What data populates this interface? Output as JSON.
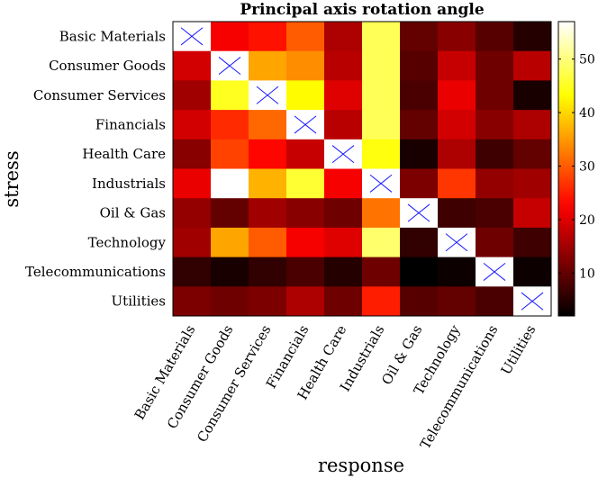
{
  "chart_data": {
    "type": "heatmap",
    "title": "Principal axis rotation angle",
    "xlabel": "response",
    "ylabel": "stress",
    "x_categories": [
      "Basic Materials",
      "Consumer Goods",
      "Consumer Services",
      "Financials",
      "Health Care",
      "Industrials",
      "Oil & Gas",
      "Technology",
      "Telecommunications",
      "Utilities"
    ],
    "y_categories": [
      "Basic Materials",
      "Consumer Goods",
      "Consumer Services",
      "Financials",
      "Health Care",
      "Industrials",
      "Oil & Gas",
      "Technology",
      "Telecommunications",
      "Utilities"
    ],
    "values": [
      [
        null,
        22,
        24,
        30,
        16,
        48,
        10,
        13,
        9,
        5
      ],
      [
        19,
        null,
        36,
        34,
        17,
        48,
        9,
        18,
        11,
        17
      ],
      [
        15,
        45,
        null,
        43,
        20,
        48,
        8,
        21,
        11,
        4
      ],
      [
        19,
        26,
        31,
        null,
        17,
        48,
        10,
        19,
        13,
        16
      ],
      [
        13,
        28,
        23,
        18,
        null,
        44,
        4,
        16,
        7,
        10
      ],
      [
        21,
        57,
        37,
        46,
        22,
        null,
        12,
        27,
        14,
        15
      ],
      [
        14,
        10,
        15,
        13,
        11,
        32,
        null,
        7,
        8,
        18
      ],
      [
        15,
        36,
        30,
        22,
        20,
        49,
        6,
        null,
        11,
        7
      ],
      [
        6,
        4,
        6,
        8,
        5,
        11,
        2,
        3,
        null,
        3
      ],
      [
        12,
        11,
        12,
        16,
        11,
        25,
        9,
        10,
        8,
        null
      ]
    ],
    "diagonal_marker": "x",
    "colormap": "hot",
    "colorbar": {
      "range": [
        2,
        57
      ],
      "ticks": [
        10,
        20,
        30,
        40,
        50
      ]
    },
    "marker_color": "#1a1aff"
  }
}
